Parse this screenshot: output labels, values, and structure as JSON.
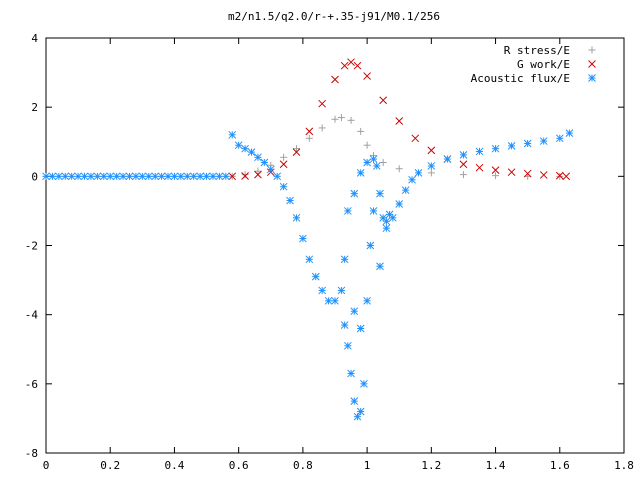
{
  "chart_data": {
    "type": "scatter",
    "title": "m2/n1.5/q2.0/r-+.35-j91/M0.1/256",
    "xlabel": "",
    "ylabel": "",
    "xlim": [
      0,
      1.8
    ],
    "ylim": [
      -8,
      4
    ],
    "x_ticks": [
      "0",
      "0.2",
      "0.4",
      "0.6",
      "0.8",
      "1",
      "1.2",
      "1.4",
      "1.6",
      "1.8"
    ],
    "y_ticks": [
      "4",
      "2",
      "0",
      "-2",
      "-4",
      "-6",
      "-8"
    ],
    "legend_position": "top-right",
    "series": [
      {
        "name": "R stress/E",
        "color": "#a0a0a0",
        "marker": "plus",
        "points": [
          [
            0.58,
            0.0
          ],
          [
            0.62,
            0.05
          ],
          [
            0.66,
            0.15
          ],
          [
            0.7,
            0.32
          ],
          [
            0.74,
            0.55
          ],
          [
            0.78,
            0.8
          ],
          [
            0.82,
            1.1
          ],
          [
            0.86,
            1.4
          ],
          [
            0.9,
            1.65
          ],
          [
            0.92,
            1.7
          ],
          [
            0.95,
            1.62
          ],
          [
            0.98,
            1.3
          ],
          [
            1.0,
            0.9
          ],
          [
            1.02,
            0.6
          ],
          [
            1.05,
            0.4
          ],
          [
            1.1,
            0.22
          ],
          [
            1.2,
            0.1
          ],
          [
            1.3,
            0.05
          ],
          [
            1.4,
            0.02
          ],
          [
            1.5,
            0.0
          ],
          [
            1.6,
            0.0
          ]
        ]
      },
      {
        "name": "G work/E",
        "color": "#cc0000",
        "marker": "cross",
        "points": [
          [
            0.58,
            0.0
          ],
          [
            0.62,
            0.01
          ],
          [
            0.66,
            0.05
          ],
          [
            0.7,
            0.12
          ],
          [
            0.74,
            0.35
          ],
          [
            0.78,
            0.7
          ],
          [
            0.82,
            1.3
          ],
          [
            0.86,
            2.1
          ],
          [
            0.9,
            2.8
          ],
          [
            0.93,
            3.2
          ],
          [
            0.95,
            3.3
          ],
          [
            0.97,
            3.2
          ],
          [
            1.0,
            2.9
          ],
          [
            1.05,
            2.2
          ],
          [
            1.1,
            1.6
          ],
          [
            1.15,
            1.1
          ],
          [
            1.2,
            0.75
          ],
          [
            1.25,
            0.5
          ],
          [
            1.3,
            0.35
          ],
          [
            1.35,
            0.25
          ],
          [
            1.4,
            0.18
          ],
          [
            1.45,
            0.12
          ],
          [
            1.5,
            0.08
          ],
          [
            1.55,
            0.04
          ],
          [
            1.6,
            0.02
          ],
          [
            1.62,
            0.0
          ]
        ]
      },
      {
        "name": "Acoustic flux/E",
        "color": "#1e90ff",
        "marker": "star",
        "points": [
          [
            0.0,
            0.0
          ],
          [
            0.02,
            0.0
          ],
          [
            0.04,
            0.0
          ],
          [
            0.06,
            0.0
          ],
          [
            0.08,
            0.0
          ],
          [
            0.1,
            0.0
          ],
          [
            0.12,
            0.0
          ],
          [
            0.14,
            0.0
          ],
          [
            0.16,
            0.0
          ],
          [
            0.18,
            0.0
          ],
          [
            0.2,
            0.0
          ],
          [
            0.22,
            0.0
          ],
          [
            0.24,
            0.0
          ],
          [
            0.26,
            0.0
          ],
          [
            0.28,
            0.0
          ],
          [
            0.3,
            0.0
          ],
          [
            0.32,
            0.0
          ],
          [
            0.34,
            0.0
          ],
          [
            0.36,
            0.0
          ],
          [
            0.38,
            0.0
          ],
          [
            0.4,
            0.0
          ],
          [
            0.42,
            0.0
          ],
          [
            0.44,
            0.0
          ],
          [
            0.46,
            0.0
          ],
          [
            0.48,
            0.0
          ],
          [
            0.5,
            0.0
          ],
          [
            0.52,
            0.0
          ],
          [
            0.54,
            0.0
          ],
          [
            0.56,
            0.0
          ],
          [
            0.58,
            1.2
          ],
          [
            0.6,
            0.9
          ],
          [
            0.62,
            0.8
          ],
          [
            0.64,
            0.7
          ],
          [
            0.66,
            0.55
          ],
          [
            0.68,
            0.4
          ],
          [
            0.7,
            0.2
          ],
          [
            0.72,
            0.0
          ],
          [
            0.74,
            -0.3
          ],
          [
            0.76,
            -0.7
          ],
          [
            0.78,
            -1.2
          ],
          [
            0.8,
            -1.8
          ],
          [
            0.82,
            -2.4
          ],
          [
            0.84,
            -2.9
          ],
          [
            0.86,
            -3.3
          ],
          [
            0.88,
            -3.6
          ],
          [
            0.9,
            -3.6
          ],
          [
            0.92,
            -3.3
          ],
          [
            0.93,
            -4.3
          ],
          [
            0.94,
            -4.9
          ],
          [
            0.95,
            -5.7
          ],
          [
            0.96,
            -6.5
          ],
          [
            0.97,
            -6.95
          ],
          [
            0.98,
            -6.8
          ],
          [
            0.99,
            -6.0
          ],
          [
            1.0,
            -3.6
          ],
          [
            1.01,
            -2.0
          ],
          [
            1.02,
            -1.0
          ],
          [
            1.02,
            0.5
          ],
          [
            1.03,
            0.3
          ],
          [
            1.04,
            -0.5
          ],
          [
            1.05,
            -1.2
          ],
          [
            1.06,
            -1.3
          ],
          [
            1.07,
            -1.1
          ],
          [
            1.08,
            -1.2
          ],
          [
            1.1,
            -0.8
          ],
          [
            1.12,
            -0.4
          ],
          [
            1.14,
            -0.1
          ],
          [
            1.16,
            0.1
          ],
          [
            1.2,
            0.3
          ],
          [
            1.25,
            0.5
          ],
          [
            1.3,
            0.62
          ],
          [
            1.35,
            0.72
          ],
          [
            1.4,
            0.8
          ],
          [
            1.45,
            0.88
          ],
          [
            1.5,
            0.95
          ],
          [
            1.55,
            1.02
          ],
          [
            1.6,
            1.1
          ],
          [
            1.63,
            1.25
          ],
          [
            0.93,
            -2.4
          ],
          [
            0.96,
            -3.9
          ],
          [
            0.98,
            -4.4
          ],
          [
            0.94,
            -1.0
          ],
          [
            0.96,
            -0.5
          ],
          [
            0.98,
            0.1
          ],
          [
            1.0,
            0.4
          ],
          [
            1.04,
            -2.6
          ],
          [
            1.06,
            -1.5
          ]
        ]
      }
    ]
  }
}
